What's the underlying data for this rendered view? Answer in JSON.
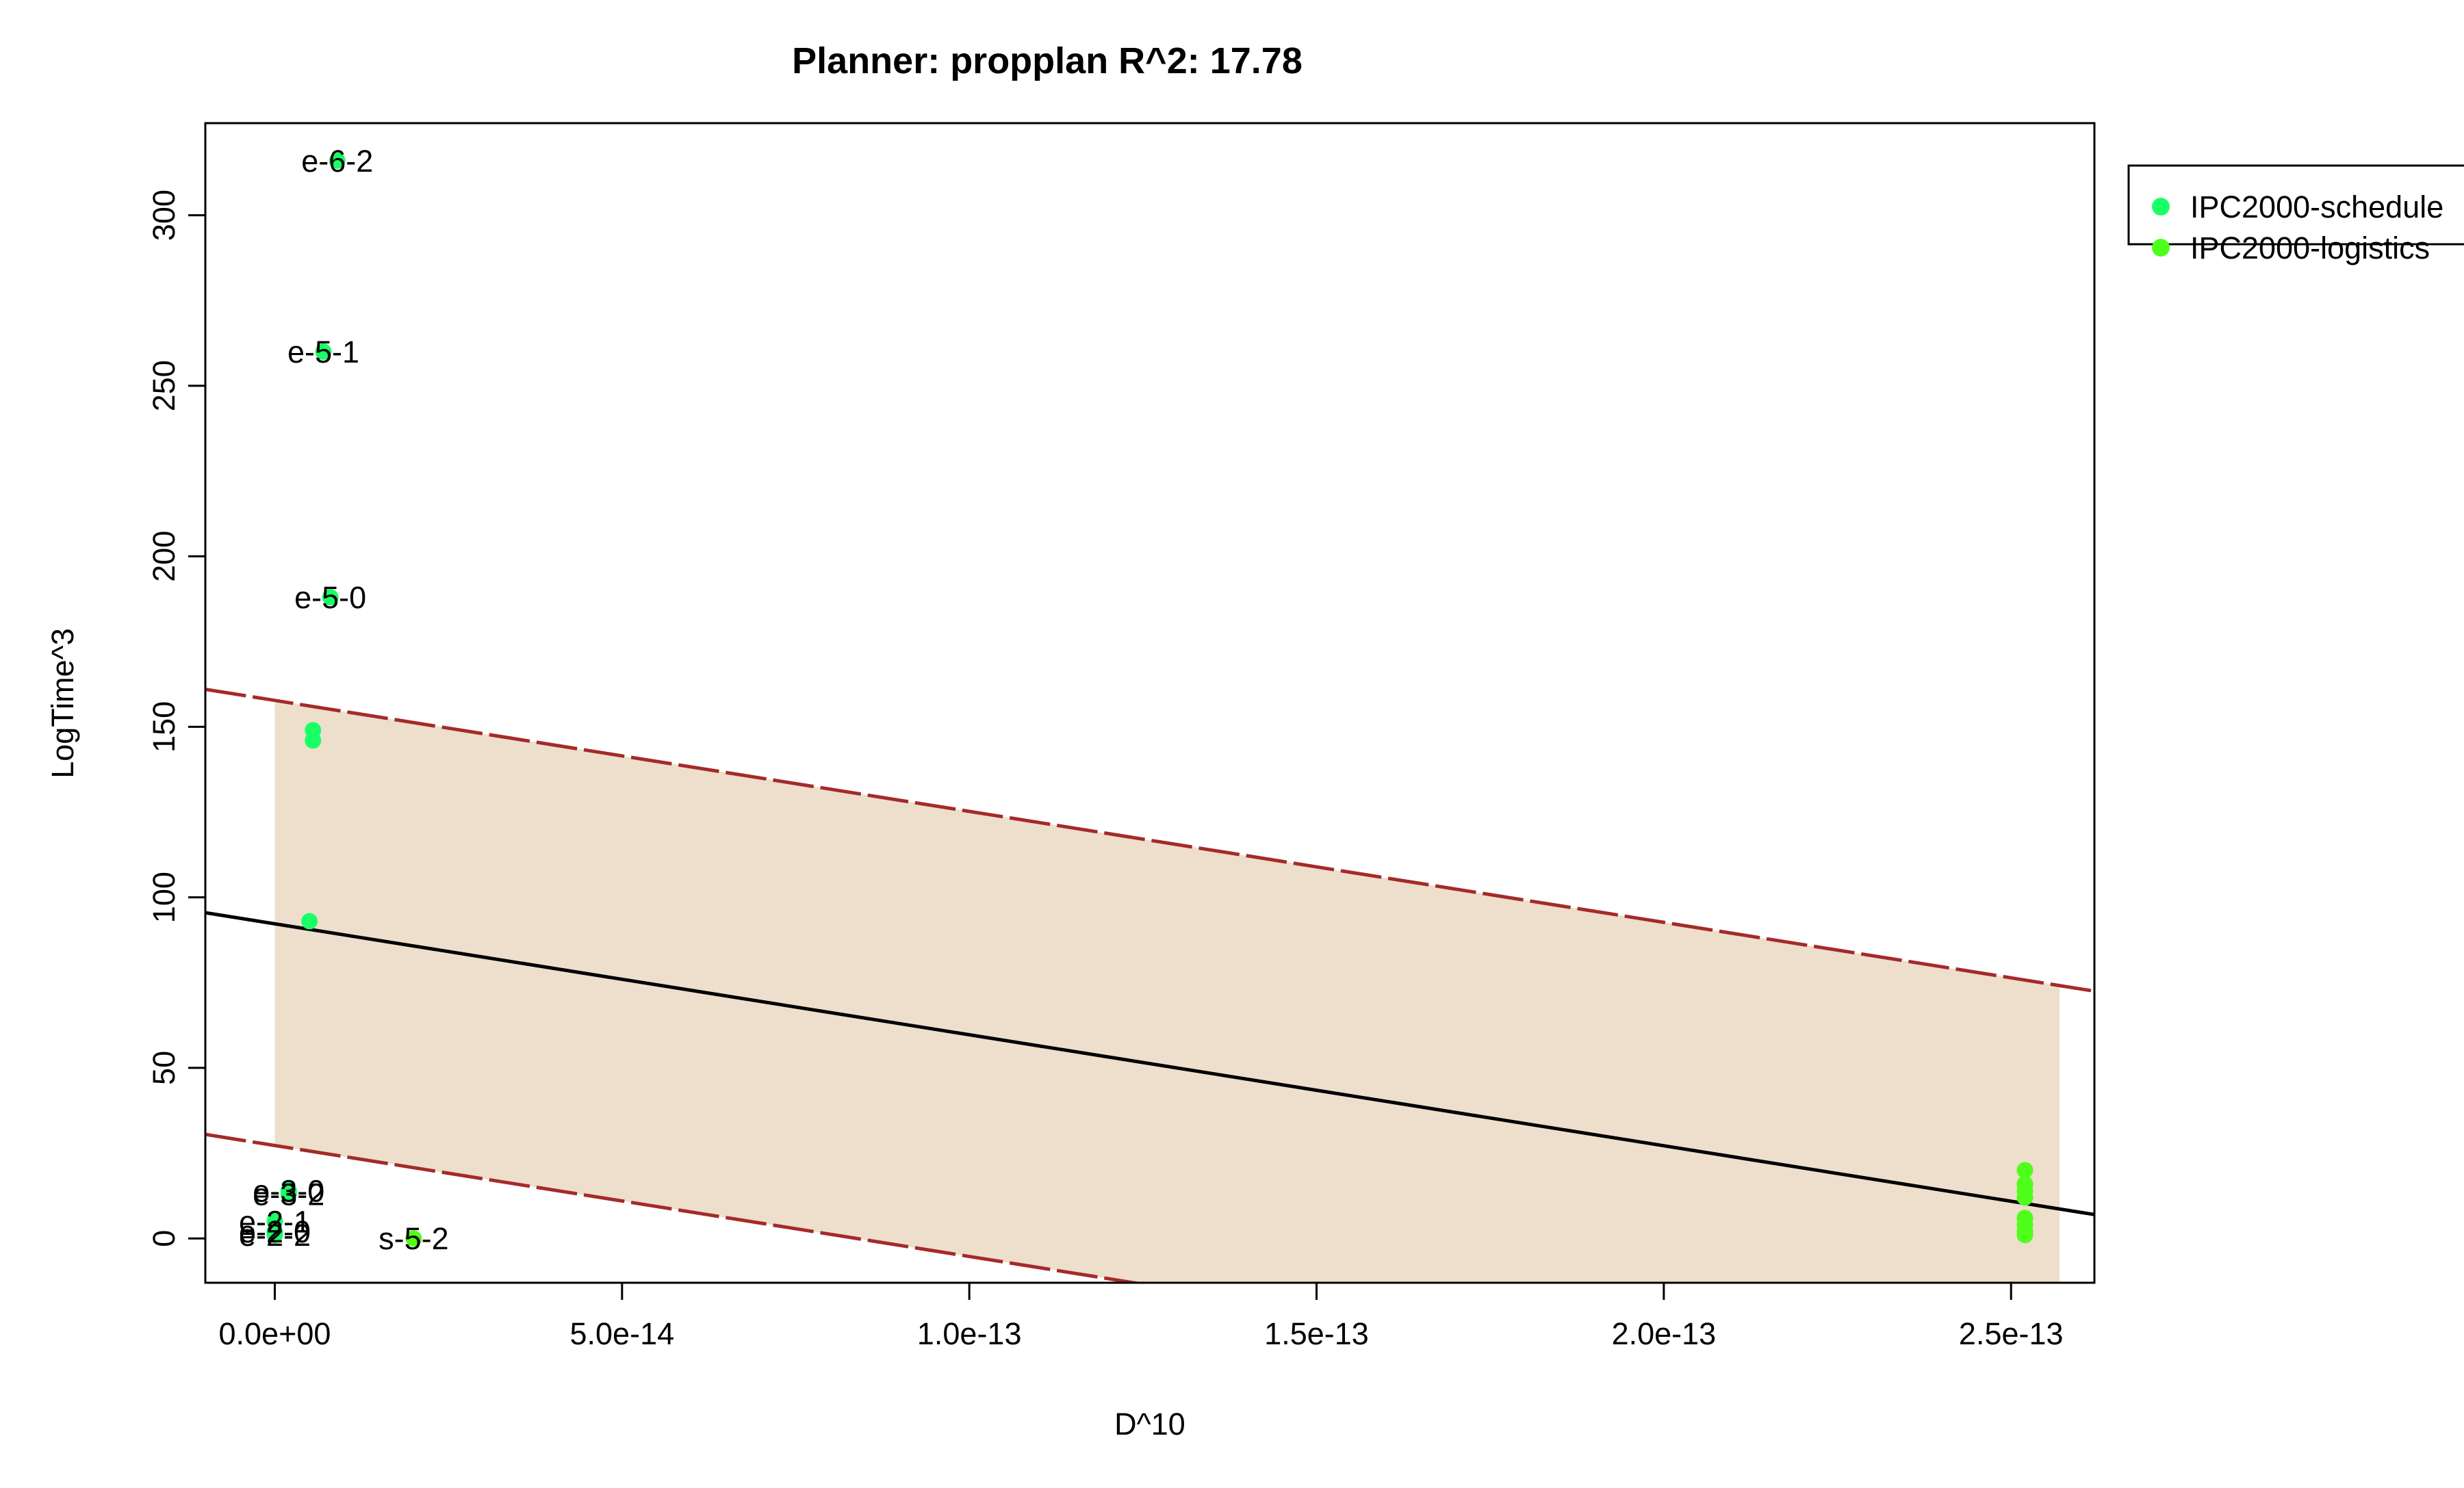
{
  "chart_data": {
    "type": "scatter",
    "title": "Planner: propplan R^2: 17.78",
    "xlabel": "D^10",
    "ylabel": "LogTime^3",
    "xlim": [
      -1e-14,
      2.62e-13
    ],
    "ylim": [
      -13,
      327
    ],
    "x_ticks": [
      0,
      5e-14,
      1e-13,
      1.5e-13,
      2e-13,
      2.5e-13
    ],
    "x_tick_labels": [
      "0.0e+00",
      "5.0e-14",
      "1.0e-13",
      "1.5e-13",
      "2.0e-13",
      "2.5e-13"
    ],
    "y_ticks": [
      0,
      50,
      100,
      150,
      200,
      250,
      300
    ],
    "y_tick_labels": [
      "0",
      "50",
      "100",
      "150",
      "200",
      "250",
      "300"
    ],
    "grid": false,
    "legend_position": "top-right",
    "series": [
      {
        "name": "IPC2000-schedule",
        "color": "#1aff66",
        "points": [
          {
            "x": 9e-15,
            "y": 316,
            "label": "e-6-2"
          },
          {
            "x": 7e-15,
            "y": 260,
            "label": "e-5-1"
          },
          {
            "x": 8e-15,
            "y": 188,
            "label": "e-5-0"
          },
          {
            "x": 5.5e-15,
            "y": 149
          },
          {
            "x": 5.5e-15,
            "y": 146
          },
          {
            "x": 5e-15,
            "y": 93
          },
          {
            "x": 2e-15,
            "y": 14,
            "label": "e-3-0"
          },
          {
            "x": 2e-15,
            "y": 13,
            "label": "e-3-2"
          },
          {
            "x": 0,
            "y": 5,
            "label": "e-2-1"
          },
          {
            "x": 0,
            "y": 2,
            "label": "e-2-0"
          },
          {
            "x": 0,
            "y": 1,
            "label": "e-2-2"
          }
        ]
      },
      {
        "name": "IPC2000-logistics",
        "color": "#4dff1a",
        "points": [
          {
            "x": 2e-14,
            "y": 0,
            "label": "s-5-2"
          },
          {
            "x": 2.52e-13,
            "y": 20
          },
          {
            "x": 2.52e-13,
            "y": 16
          },
          {
            "x": 2.52e-13,
            "y": 14
          },
          {
            "x": 2.52e-13,
            "y": 12
          },
          {
            "x": 2.52e-13,
            "y": 6
          },
          {
            "x": 2.52e-13,
            "y": 4
          },
          {
            "x": 2.52e-13,
            "y": 2
          },
          {
            "x": 2.52e-13,
            "y": 1
          }
        ]
      }
    ],
    "fit_line": {
      "x": [
        -1e-14,
        2.62e-13
      ],
      "y": [
        95.5,
        7
      ],
      "color": "#000000"
    },
    "prediction_band": {
      "upper": {
        "x": [
          -1e-14,
          2.62e-13
        ],
        "y": [
          161,
          72.5
        ]
      },
      "lower": {
        "x": [
          -1e-14,
          2.62e-13
        ],
        "y": [
          30.5,
          -58
        ]
      },
      "color": "#a52a2a"
    },
    "shaded_region": {
      "x_range": [
        0,
        2.57e-13
      ],
      "color": "#eddfcc"
    }
  }
}
